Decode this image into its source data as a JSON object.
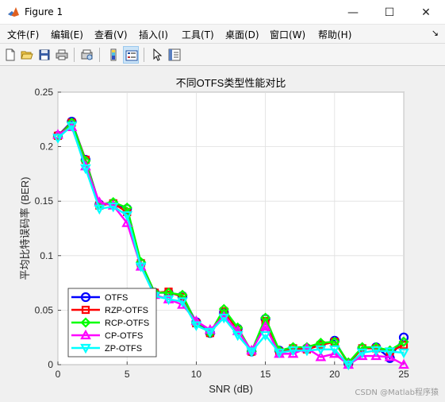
{
  "window": {
    "title": "Figure 1",
    "minimize_glyph": "—",
    "maximize_glyph": "☐",
    "close_glyph": "✕"
  },
  "menu": {
    "items": [
      "文件(F)",
      "编辑(E)",
      "查看(V)",
      "插入(I)",
      "工具(T)",
      "桌面(D)",
      "窗口(W)",
      "帮助(H)"
    ],
    "overflow_glyph": "↘"
  },
  "toolbar": {
    "icons": [
      "new-figure-icon",
      "open-file-icon",
      "save-icon",
      "print-icon",
      "print-preview-icon",
      "colorbar-icon",
      "legend-icon",
      "pointer-icon",
      "property-inspector-icon"
    ]
  },
  "watermark": "CSDN @Matlab程序猿",
  "chart_data": {
    "type": "line",
    "title": "不同OTFS类型性能对比",
    "xlabel": "SNR (dB)",
    "ylabel": "平均比特误码率 (BER)",
    "xlim": [
      0,
      25
    ],
    "ylim": [
      0,
      0.25
    ],
    "xticks": [
      0,
      5,
      10,
      15,
      20,
      25
    ],
    "yticks": [
      0,
      0.05,
      0.1,
      0.15,
      0.2,
      0.25
    ],
    "grid": true,
    "legend_position": "bottom-left",
    "x": [
      0,
      1,
      2,
      3,
      4,
      5,
      6,
      7,
      8,
      9,
      10,
      11,
      12,
      13,
      14,
      15,
      16,
      17,
      18,
      19,
      20,
      21,
      22,
      23,
      24,
      25
    ],
    "series": [
      {
        "name": "OTFS",
        "color": "#0000ff",
        "marker": "circle",
        "values": [
          0.21,
          0.223,
          0.188,
          0.147,
          0.148,
          0.143,
          0.093,
          0.066,
          0.066,
          0.063,
          0.039,
          0.029,
          0.048,
          0.033,
          0.012,
          0.042,
          0.013,
          0.015,
          0.015,
          0.018,
          0.022,
          0.001,
          0.015,
          0.016,
          0.006,
          0.025
        ]
      },
      {
        "name": "RZP-OTFS",
        "color": "#ff0000",
        "marker": "square",
        "values": [
          0.21,
          0.222,
          0.188,
          0.146,
          0.148,
          0.14,
          0.093,
          0.066,
          0.067,
          0.062,
          0.038,
          0.029,
          0.049,
          0.032,
          0.012,
          0.04,
          0.012,
          0.015,
          0.014,
          0.018,
          0.021,
          0.001,
          0.015,
          0.015,
          0.012,
          0.018
        ]
      },
      {
        "name": "RCP-OTFS",
        "color": "#00ff00",
        "marker": "diamond",
        "values": [
          0.209,
          0.222,
          0.187,
          0.147,
          0.149,
          0.144,
          0.094,
          0.066,
          0.066,
          0.064,
          0.038,
          0.029,
          0.051,
          0.034,
          0.012,
          0.043,
          0.013,
          0.016,
          0.016,
          0.02,
          0.021,
          0.002,
          0.016,
          0.016,
          0.013,
          0.021
        ]
      },
      {
        "name": "CP-OTFS",
        "color": "#ff00ff",
        "marker": "triangle-up",
        "values": [
          0.211,
          0.218,
          0.182,
          0.149,
          0.146,
          0.13,
          0.09,
          0.064,
          0.06,
          0.055,
          0.04,
          0.032,
          0.044,
          0.031,
          0.013,
          0.035,
          0.01,
          0.01,
          0.015,
          0.007,
          0.01,
          0.0,
          0.008,
          0.008,
          0.007,
          0.0
        ]
      },
      {
        "name": "ZP-OTFS",
        "color": "#00ffff",
        "marker": "triangle-down",
        "values": [
          0.208,
          0.219,
          0.18,
          0.143,
          0.145,
          0.137,
          0.09,
          0.063,
          0.06,
          0.058,
          0.036,
          0.03,
          0.043,
          0.027,
          0.012,
          0.027,
          0.011,
          0.013,
          0.013,
          0.014,
          0.014,
          0.0,
          0.011,
          0.013,
          0.012,
          0.011
        ]
      }
    ]
  }
}
